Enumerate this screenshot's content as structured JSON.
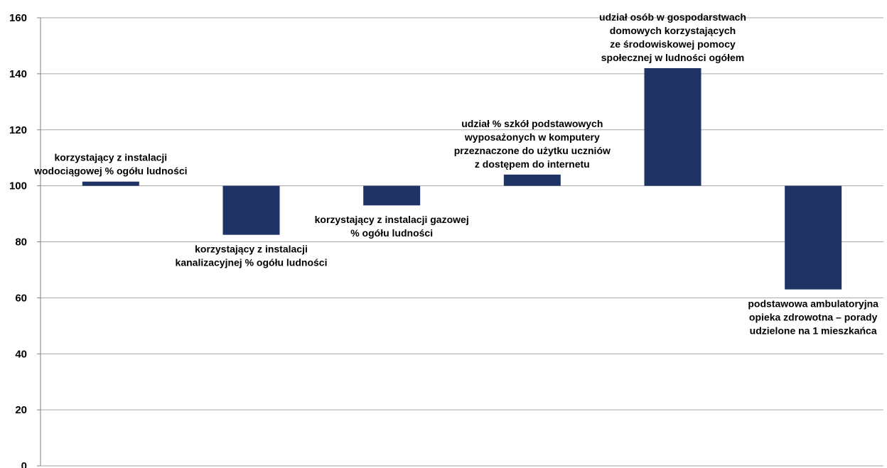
{
  "chart_data": {
    "type": "bar",
    "baseline": 100,
    "ylim": [
      0,
      160
    ],
    "yticks": [
      0,
      20,
      40,
      60,
      80,
      100,
      120,
      140,
      160
    ],
    "grid": true,
    "bar_color": "#1f3464",
    "categories": [
      "korzystający z instalacji wodociągowej % ogółu ludności",
      "korzystający z instalacji kanalizacyjnej % ogółu ludności",
      "korzystający z instalacji gazowej % ogółu ludności",
      "udział % szkół podstawowych wyposażonych w komputery przeznaczone do użytku uczniów z dostępem do internetu",
      "udział osób w gospodarstwach domowych korzystających ze środowiskowej pomocy społecznej w ludności ogółem",
      "podstawowa ambulatoryjna opieka zdrowotna – porady udzielone na 1 mieszkańca"
    ],
    "values": [
      101.5,
      82.5,
      93,
      104,
      142,
      63
    ],
    "label_lines": [
      [
        "korzystający z instalacji",
        "wodociągowej % ogółu ludności"
      ],
      [
        "korzystający z instalacji",
        "kanalizacyjnej % ogółu ludności"
      ],
      [
        "korzystający z instalacji gazowej",
        "% ogółu ludności"
      ],
      [
        "udział % szkół podstawowych",
        "wyposażonych w komputery",
        "przeznaczone do użytku uczniów",
        "z dostępem do internetu"
      ],
      [
        "udział osób w gospodarstwach",
        "domowych korzystających",
        "ze środowiskowej pomocy",
        "społecznej w ludności ogółem"
      ],
      [
        "podstawowa ambulatoryjna",
        "opieka zdrowotna – porady",
        "udzielone na 1 mieszkańca"
      ]
    ]
  }
}
